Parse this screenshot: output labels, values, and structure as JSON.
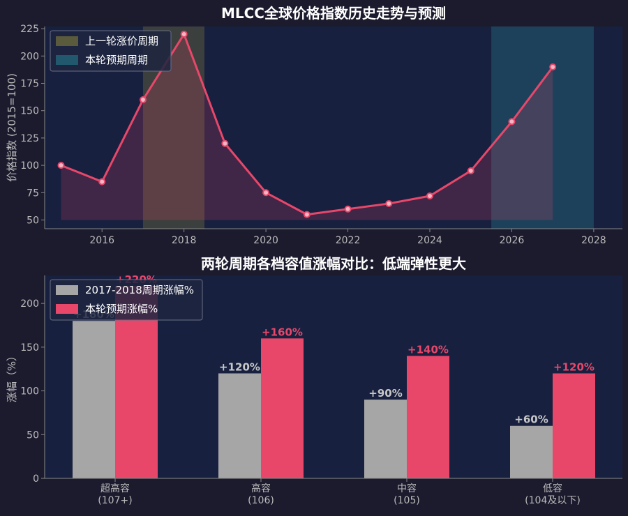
{
  "chart_data": [
    {
      "type": "line",
      "title": "MLCC全球价格指数历史走势与预测",
      "xlabel": "",
      "ylabel": "价格指数 (2015=100)",
      "x": [
        2015,
        2016,
        2017,
        2018,
        2019,
        2020,
        2021,
        2022,
        2023,
        2024,
        2025,
        2026,
        2027
      ],
      "series": [
        {
          "name": "",
          "values": [
            100,
            85,
            160,
            220,
            120,
            75,
            55,
            60,
            65,
            72,
            95,
            140,
            190
          ]
        }
      ],
      "fill_baseline": 50,
      "xlim": [
        2014.6,
        2028.7
      ],
      "ylim": [
        42,
        227
      ],
      "xticks": [
        2016,
        2018,
        2020,
        2022,
        2024,
        2026,
        2028
      ],
      "xtick_labels": [
        "2016",
        "2018",
        "2020",
        "2022",
        "2024",
        "2026",
        "2028"
      ],
      "yticks": [
        50,
        75,
        100,
        125,
        150,
        175,
        200,
        225
      ],
      "ytick_labels": [
        "50",
        "75",
        "100",
        "125",
        "150",
        "175",
        "200",
        "225"
      ],
      "shaded_regions": [
        {
          "name": "上一轮涨价周期",
          "from": 2017,
          "to": 2018.5
        },
        {
          "name": "本轮预期周期",
          "from": 2025.5,
          "to": 2028
        }
      ],
      "legend": "top-left",
      "grid": false,
      "colors": {
        "line": "#e8476a",
        "prev_cycle": "#5a5a3c",
        "curr_cycle": "#22586e"
      }
    },
    {
      "type": "bar",
      "title": "两轮周期各档容值涨幅对比：低端弹性更大",
      "xlabel": "",
      "ylabel": "涨幅（%）",
      "categories": [
        "超高容\n(107+)",
        "高容\n(106)",
        "中容\n(105)",
        "低容\n(104及以下)"
      ],
      "series": [
        {
          "name": "2017-2018周期涨幅%",
          "values": [
            180,
            120,
            90,
            60
          ],
          "labels": [
            "+180%",
            "+120%",
            "+90%",
            "+60%"
          ]
        },
        {
          "name": "本轮预期涨幅%",
          "values": [
            220,
            160,
            140,
            120
          ],
          "labels": [
            "+220%",
            "+160%",
            "+140%",
            "+120%"
          ]
        }
      ],
      "ylim": [
        0,
        232
      ],
      "yticks": [
        0,
        50,
        100,
        150,
        200
      ],
      "ytick_labels": [
        "0",
        "50",
        "100",
        "150",
        "200"
      ],
      "legend": "top-left",
      "grid": false,
      "colors": {
        "prev": "#a6a6a6",
        "curr": "#e8476a"
      }
    }
  ]
}
